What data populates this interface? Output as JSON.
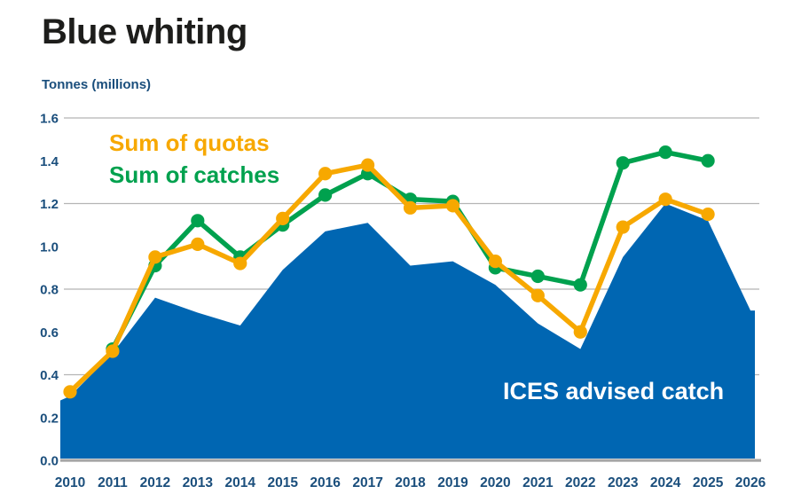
{
  "title": "Blue whiting",
  "y_axis_title": "Tonnes (millions)",
  "legend": {
    "quotas_label": "Sum of quotas",
    "catches_label": "Sum of catches"
  },
  "area_label": "ICES advised catch",
  "colors": {
    "quotas_line": "#f7a800",
    "catches_line": "#00a14e",
    "advice_area": "#0066b2",
    "axis_text": "#1a4e7c",
    "gridline": "#b5b5b5",
    "axis_line": "#a6a6a6",
    "title_text": "#1d1d1b",
    "background": "#ffffff"
  },
  "chart_data": {
    "type": "area+line combo",
    "title": "Blue whiting",
    "ylabel": "Tonnes (millions)",
    "ylim": [
      0,
      1.6
    ],
    "y_ticks": [
      "0.0",
      "0.2",
      "0.4",
      "0.6",
      "0.8",
      "1.0",
      "1.2",
      "1.4",
      "1.6"
    ],
    "y_tick_values": [
      0,
      0.2,
      0.4,
      0.6,
      0.8,
      1.0,
      1.2,
      1.4,
      1.6
    ],
    "gridline_values": [
      0.4,
      0.8,
      1.2,
      1.6
    ],
    "x_tick_labels": [
      "2010",
      "2011",
      "2012",
      "2013",
      "2014",
      "2015",
      "2016",
      "2017",
      "2018",
      "2019",
      "2020",
      "2021",
      "2022",
      "2023",
      "2024",
      "2025",
      "2026"
    ],
    "x_years_full_range": [
      2010,
      2026
    ],
    "legend_position": "top-left inside plot",
    "grid": "horizontal only",
    "series": [
      {
        "name": "Sum of quotas",
        "type": "line",
        "color": "#f7a800",
        "marker": "circle",
        "years": [
          2010,
          2011,
          2012,
          2013,
          2014,
          2015,
          2016,
          2017,
          2018,
          2019,
          2020,
          2021,
          2022,
          2023,
          2024,
          2025
        ],
        "values": [
          0.32,
          0.51,
          0.95,
          1.01,
          0.92,
          1.13,
          1.34,
          1.38,
          1.18,
          1.19,
          0.93,
          0.77,
          0.6,
          1.09,
          1.22,
          1.15
        ]
      },
      {
        "name": "Sum of catches",
        "type": "line",
        "color": "#00a14e",
        "marker": "circle",
        "years": [
          2011,
          2012,
          2013,
          2014,
          2015,
          2016,
          2017,
          2018,
          2019,
          2020,
          2021,
          2022,
          2023,
          2024,
          2025
        ],
        "values": [
          0.52,
          0.91,
          1.12,
          0.95,
          1.1,
          1.24,
          1.34,
          1.22,
          1.21,
          0.9,
          0.86,
          0.82,
          1.39,
          1.44,
          1.4
        ]
      },
      {
        "name": "ICES advised catch",
        "type": "area",
        "color": "#0066b2",
        "years": [
          2010,
          2011,
          2012,
          2013,
          2014,
          2015,
          2016,
          2017,
          2018,
          2019,
          2020,
          2021,
          2022,
          2023,
          2024,
          2025,
          2026
        ],
        "values": [
          0.3,
          0.5,
          0.76,
          0.69,
          0.63,
          0.89,
          1.07,
          1.11,
          0.91,
          0.93,
          0.82,
          0.64,
          0.52,
          0.95,
          1.2,
          1.12,
          0.7
        ]
      }
    ]
  }
}
